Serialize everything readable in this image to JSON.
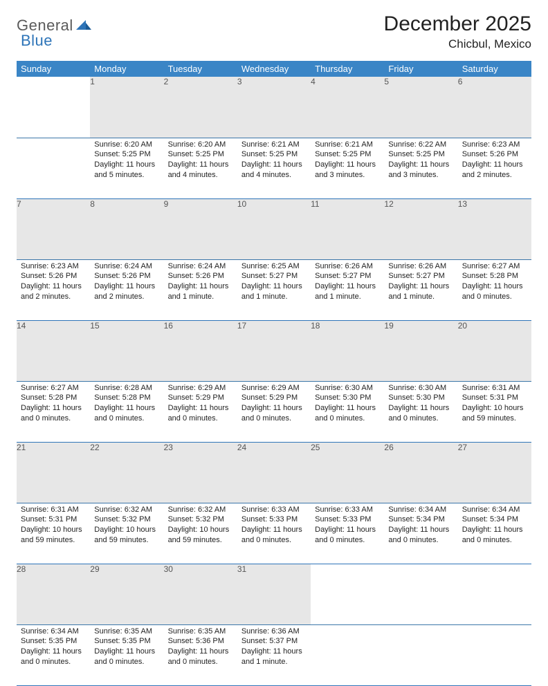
{
  "logo": {
    "part1": "General",
    "part2": "Blue"
  },
  "title": "December 2025",
  "location": "Chicbul, Mexico",
  "colors": {
    "header_bg": "#3a85c6",
    "header_text": "#ffffff",
    "daynum_bg": "#e7e7e7",
    "daynum_text": "#555555",
    "border": "#2d74b8",
    "logo_gray": "#5a5a5a",
    "logo_blue": "#2d74b8"
  },
  "weekdays": [
    "Sunday",
    "Monday",
    "Tuesday",
    "Wednesday",
    "Thursday",
    "Friday",
    "Saturday"
  ],
  "weeks": [
    [
      null,
      {
        "n": "1",
        "sr": "6:20 AM",
        "ss": "5:25 PM",
        "dl": "11 hours and 5 minutes."
      },
      {
        "n": "2",
        "sr": "6:20 AM",
        "ss": "5:25 PM",
        "dl": "11 hours and 4 minutes."
      },
      {
        "n": "3",
        "sr": "6:21 AM",
        "ss": "5:25 PM",
        "dl": "11 hours and 4 minutes."
      },
      {
        "n": "4",
        "sr": "6:21 AM",
        "ss": "5:25 PM",
        "dl": "11 hours and 3 minutes."
      },
      {
        "n": "5",
        "sr": "6:22 AM",
        "ss": "5:25 PM",
        "dl": "11 hours and 3 minutes."
      },
      {
        "n": "6",
        "sr": "6:23 AM",
        "ss": "5:26 PM",
        "dl": "11 hours and 2 minutes."
      }
    ],
    [
      {
        "n": "7",
        "sr": "6:23 AM",
        "ss": "5:26 PM",
        "dl": "11 hours and 2 minutes."
      },
      {
        "n": "8",
        "sr": "6:24 AM",
        "ss": "5:26 PM",
        "dl": "11 hours and 2 minutes."
      },
      {
        "n": "9",
        "sr": "6:24 AM",
        "ss": "5:26 PM",
        "dl": "11 hours and 1 minute."
      },
      {
        "n": "10",
        "sr": "6:25 AM",
        "ss": "5:27 PM",
        "dl": "11 hours and 1 minute."
      },
      {
        "n": "11",
        "sr": "6:26 AM",
        "ss": "5:27 PM",
        "dl": "11 hours and 1 minute."
      },
      {
        "n": "12",
        "sr": "6:26 AM",
        "ss": "5:27 PM",
        "dl": "11 hours and 1 minute."
      },
      {
        "n": "13",
        "sr": "6:27 AM",
        "ss": "5:28 PM",
        "dl": "11 hours and 0 minutes."
      }
    ],
    [
      {
        "n": "14",
        "sr": "6:27 AM",
        "ss": "5:28 PM",
        "dl": "11 hours and 0 minutes."
      },
      {
        "n": "15",
        "sr": "6:28 AM",
        "ss": "5:28 PM",
        "dl": "11 hours and 0 minutes."
      },
      {
        "n": "16",
        "sr": "6:29 AM",
        "ss": "5:29 PM",
        "dl": "11 hours and 0 minutes."
      },
      {
        "n": "17",
        "sr": "6:29 AM",
        "ss": "5:29 PM",
        "dl": "11 hours and 0 minutes."
      },
      {
        "n": "18",
        "sr": "6:30 AM",
        "ss": "5:30 PM",
        "dl": "11 hours and 0 minutes."
      },
      {
        "n": "19",
        "sr": "6:30 AM",
        "ss": "5:30 PM",
        "dl": "11 hours and 0 minutes."
      },
      {
        "n": "20",
        "sr": "6:31 AM",
        "ss": "5:31 PM",
        "dl": "10 hours and 59 minutes."
      }
    ],
    [
      {
        "n": "21",
        "sr": "6:31 AM",
        "ss": "5:31 PM",
        "dl": "10 hours and 59 minutes."
      },
      {
        "n": "22",
        "sr": "6:32 AM",
        "ss": "5:32 PM",
        "dl": "10 hours and 59 minutes."
      },
      {
        "n": "23",
        "sr": "6:32 AM",
        "ss": "5:32 PM",
        "dl": "10 hours and 59 minutes."
      },
      {
        "n": "24",
        "sr": "6:33 AM",
        "ss": "5:33 PM",
        "dl": "11 hours and 0 minutes."
      },
      {
        "n": "25",
        "sr": "6:33 AM",
        "ss": "5:33 PM",
        "dl": "11 hours and 0 minutes."
      },
      {
        "n": "26",
        "sr": "6:34 AM",
        "ss": "5:34 PM",
        "dl": "11 hours and 0 minutes."
      },
      {
        "n": "27",
        "sr": "6:34 AM",
        "ss": "5:34 PM",
        "dl": "11 hours and 0 minutes."
      }
    ],
    [
      {
        "n": "28",
        "sr": "6:34 AM",
        "ss": "5:35 PM",
        "dl": "11 hours and 0 minutes."
      },
      {
        "n": "29",
        "sr": "6:35 AM",
        "ss": "5:35 PM",
        "dl": "11 hours and 0 minutes."
      },
      {
        "n": "30",
        "sr": "6:35 AM",
        "ss": "5:36 PM",
        "dl": "11 hours and 0 minutes."
      },
      {
        "n": "31",
        "sr": "6:36 AM",
        "ss": "5:37 PM",
        "dl": "11 hours and 1 minute."
      },
      null,
      null,
      null
    ]
  ],
  "labels": {
    "sunrise": "Sunrise:",
    "sunset": "Sunset:",
    "daylight": "Daylight:"
  }
}
